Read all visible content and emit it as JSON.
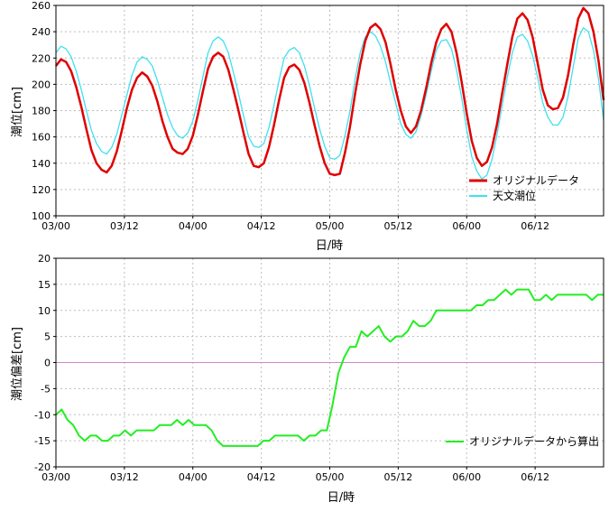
{
  "chart_data": [
    {
      "type": "line",
      "xlabel": "日/時",
      "ylabel": "潮位[cm]",
      "ylim": [
        100,
        260
      ],
      "yticks": [
        100,
        120,
        140,
        160,
        180,
        200,
        220,
        240,
        260
      ],
      "xlim": [
        0,
        91
      ],
      "xtick_labels": [
        "03/00",
        "03/12",
        "04/00",
        "04/12",
        "05/00",
        "05/12",
        "06/00",
        "06/12"
      ],
      "grid": true,
      "legend_position": "bottom-right",
      "series": [
        {
          "name": "オリジナルデータ",
          "color": "#e00000",
          "values": [
            214,
            219,
            217,
            210,
            198,
            183,
            166,
            150,
            140,
            135,
            133,
            138,
            149,
            165,
            182,
            196,
            205,
            209,
            206,
            199,
            187,
            172,
            160,
            151,
            148,
            147,
            151,
            161,
            177,
            195,
            212,
            221,
            224,
            221,
            211,
            196,
            180,
            163,
            147,
            138,
            137,
            140,
            152,
            169,
            188,
            205,
            213,
            215,
            211,
            201,
            186,
            169,
            153,
            140,
            132,
            131,
            132,
            148,
            168,
            193,
            215,
            233,
            243,
            246,
            242,
            232,
            215,
            196,
            180,
            168,
            163,
            168,
            180,
            197,
            216,
            232,
            242,
            246,
            240,
            224,
            202,
            178,
            157,
            144,
            138,
            141,
            152,
            170,
            193,
            215,
            236,
            250,
            254,
            249,
            236,
            216,
            196,
            184,
            181,
            182,
            190,
            207,
            230,
            250,
            258,
            254,
            240,
            218,
            188
          ]
        },
        {
          "name": "天文潮位",
          "color": "#40e0f0",
          "values": [
            224,
            229,
            227,
            221,
            210,
            196,
            180,
            165,
            155,
            149,
            147,
            152,
            162,
            177,
            192,
            207,
            217,
            221,
            219,
            214,
            203,
            190,
            177,
            167,
            161,
            159,
            163,
            172,
            188,
            206,
            224,
            233,
            236,
            233,
            224,
            209,
            193,
            176,
            160,
            153,
            152,
            155,
            167,
            184,
            203,
            220,
            226,
            228,
            224,
            214,
            199,
            182,
            166,
            153,
            144,
            143,
            146,
            161,
            180,
            204,
            224,
            236,
            240,
            237,
            229,
            217,
            201,
            186,
            170,
            162,
            159,
            164,
            176,
            192,
            210,
            226,
            233,
            234,
            227,
            211,
            190,
            166,
            145,
            134,
            128,
            131,
            143,
            162,
            184,
            205,
            224,
            236,
            238,
            233,
            222,
            205,
            186,
            175,
            169,
            169,
            175,
            191,
            213,
            235,
            243,
            240,
            226,
            204,
            173
          ]
        }
      ]
    },
    {
      "type": "line",
      "xlabel": "日/時",
      "ylabel": "潮位偏差[cm]",
      "ylim": [
        -20,
        20
      ],
      "yticks": [
        -20,
        -15,
        -10,
        -5,
        0,
        5,
        10,
        15,
        20
      ],
      "xlim": [
        0,
        91
      ],
      "xtick_labels": [
        "03/00",
        "03/12",
        "04/00",
        "04/12",
        "05/00",
        "05/12",
        "06/00",
        "06/12"
      ],
      "grid": true,
      "legend_position": "bottom-right",
      "series": [
        {
          "name": "オリジナルデータから算出",
          "color": "#22ee22",
          "values": [
            -10,
            -9,
            -11,
            -12,
            -14,
            -15,
            -14,
            -14,
            -15,
            -15,
            -14,
            -14,
            -13,
            -14,
            -13,
            -13,
            -13,
            -13,
            -12,
            -12,
            -12,
            -11,
            -12,
            -11,
            -12,
            -12,
            -12,
            -13,
            -15,
            -16,
            -16,
            -16,
            -16,
            -16,
            -16,
            -16,
            -15,
            -15,
            -14,
            -14,
            -14,
            -14,
            -14,
            -15,
            -14,
            -14,
            -13,
            -13,
            -8,
            -2,
            1,
            3,
            3,
            6,
            5,
            6,
            7,
            5,
            4,
            5,
            5,
            6,
            8,
            7,
            7,
            8,
            10,
            10,
            10,
            10,
            10,
            10,
            10,
            11,
            11,
            12,
            12,
            13,
            14,
            13,
            14,
            14,
            14,
            12,
            12,
            13,
            12,
            13,
            13,
            13,
            13,
            13,
            13,
            12,
            13,
            13
          ]
        }
      ],
      "reference_line": {
        "value": 0,
        "color": "#cc88cc"
      }
    }
  ]
}
